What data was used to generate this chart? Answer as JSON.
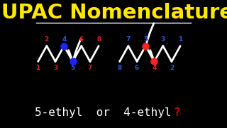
{
  "title": "IUPAC Nomenclature",
  "title_color": "#FFE800",
  "bg_color": "#000000",
  "underline_color": "#FFFFFF",
  "chain_color": "#FFFFFF",
  "dot1_color": "#2222FF",
  "dot2_color": "#FF2222",
  "num_red": "#DD2222",
  "num_blue": "#3355DD",
  "bottom_main": "5-ethyl  or  4-ethyl",
  "bottom_q": "?",
  "bottom_color": "#FFFFFF",
  "q_color": "#CC0000"
}
